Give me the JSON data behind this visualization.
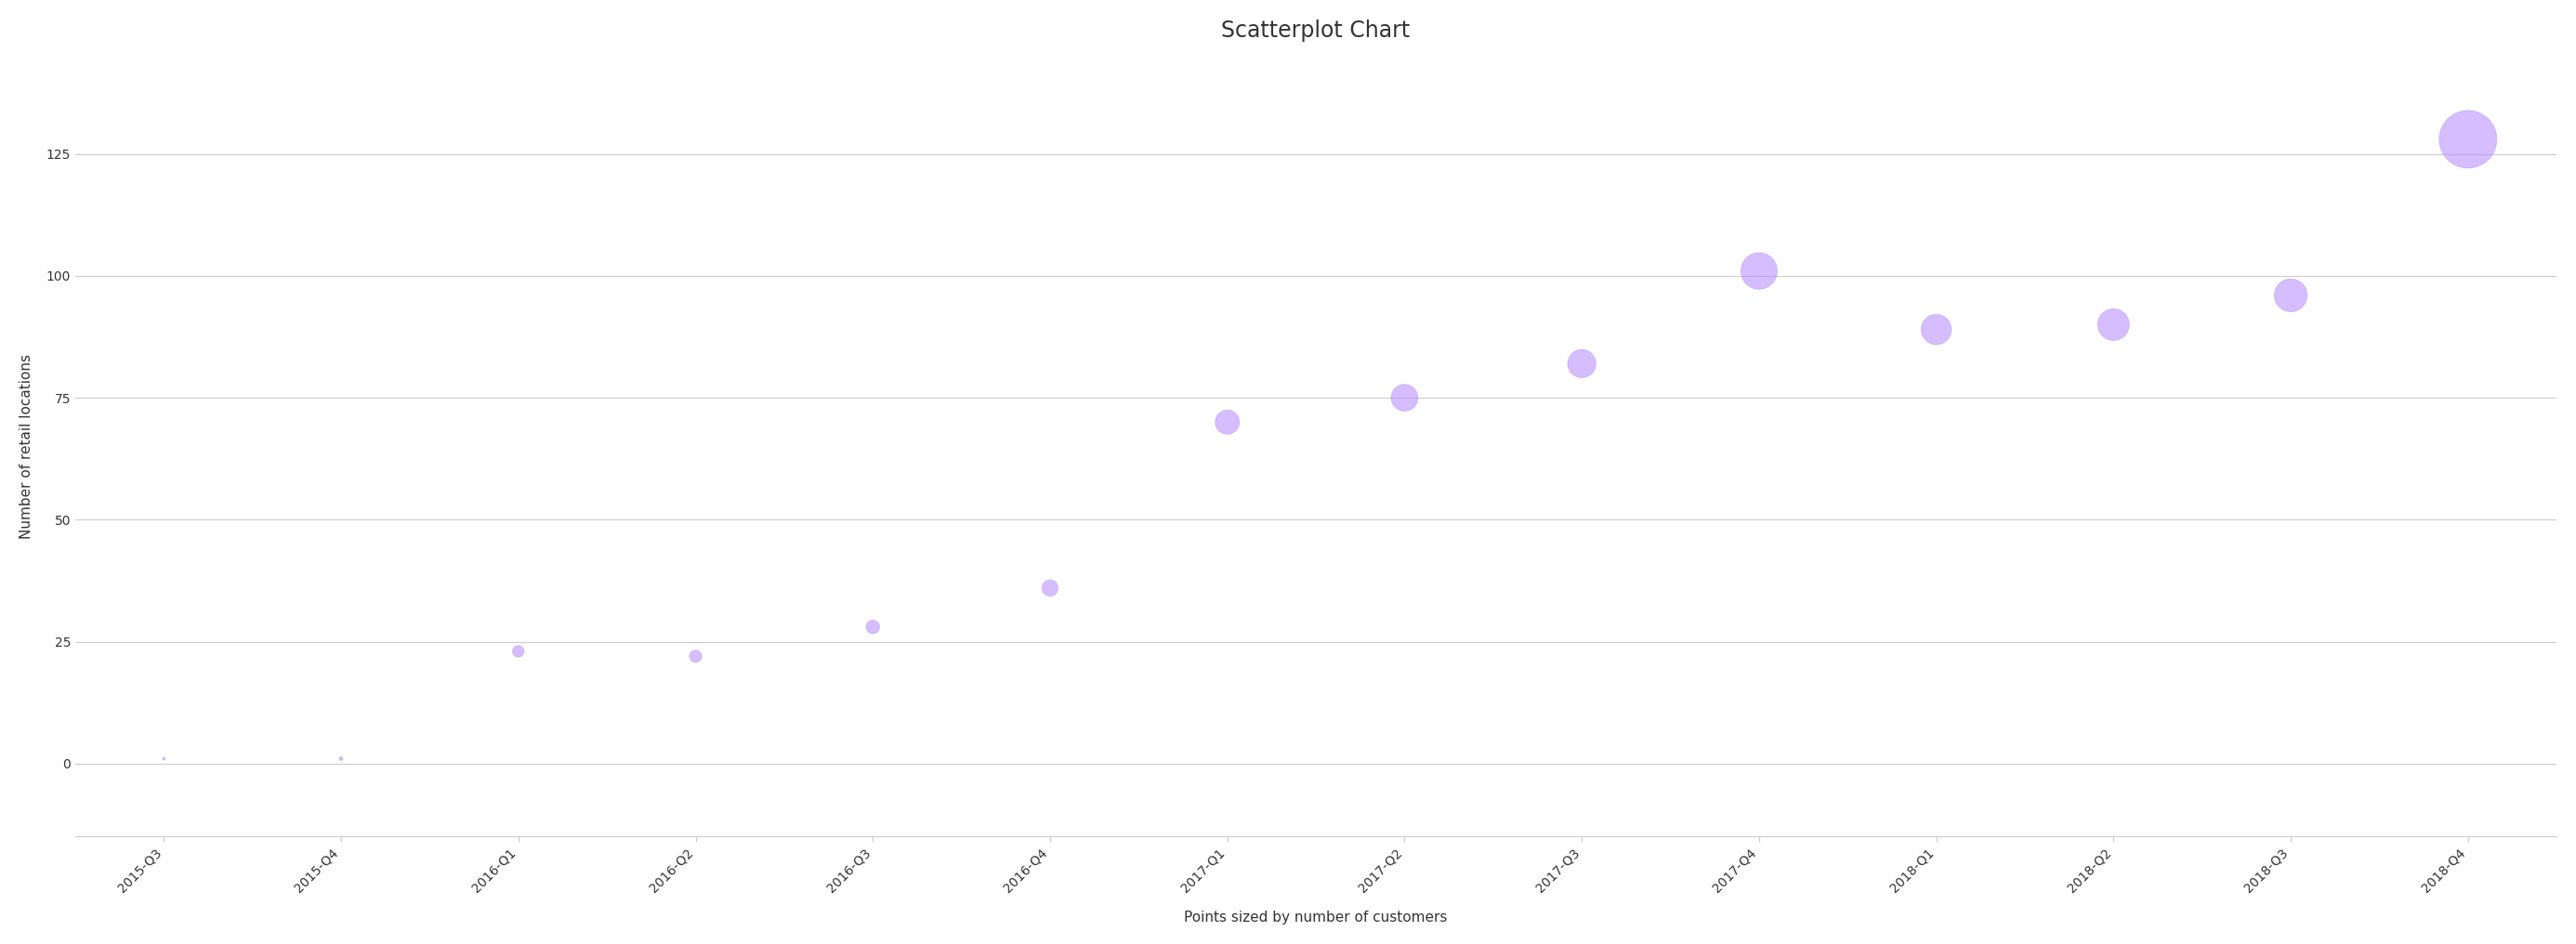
{
  "title": "Scatterplot Chart",
  "xlabel": "Points sized by number of customers",
  "ylabel": "Number of retail locations",
  "quarters": [
    "2015-Q3",
    "2015-Q4",
    "2016-Q1",
    "2016-Q2",
    "2016-Q3",
    "2016-Q4",
    "2017-Q1",
    "2017-Q2",
    "2017-Q3",
    "2017-Q4",
    "2018-Q1",
    "2018-Q2",
    "2018-Q3",
    "2018-Q4"
  ],
  "y_values": [
    1,
    1,
    23,
    22,
    28,
    36,
    70,
    75,
    82,
    101,
    89,
    90,
    96,
    128
  ],
  "bubble_sizes": [
    5,
    8,
    80,
    90,
    110,
    160,
    350,
    430,
    480,
    800,
    550,
    600,
    650,
    2000
  ],
  "point_color": "#b388ff",
  "point_alpha": 0.55,
  "background_color": "#ffffff",
  "grid_color": "#cccccc",
  "ylim": [
    -15,
    145
  ],
  "yticks": [
    0,
    25,
    50,
    75,
    100,
    125
  ],
  "title_fontsize": 17,
  "label_fontsize": 11,
  "tick_fontsize": 10,
  "border_color": "#cccccc",
  "tick_color": "#333333"
}
